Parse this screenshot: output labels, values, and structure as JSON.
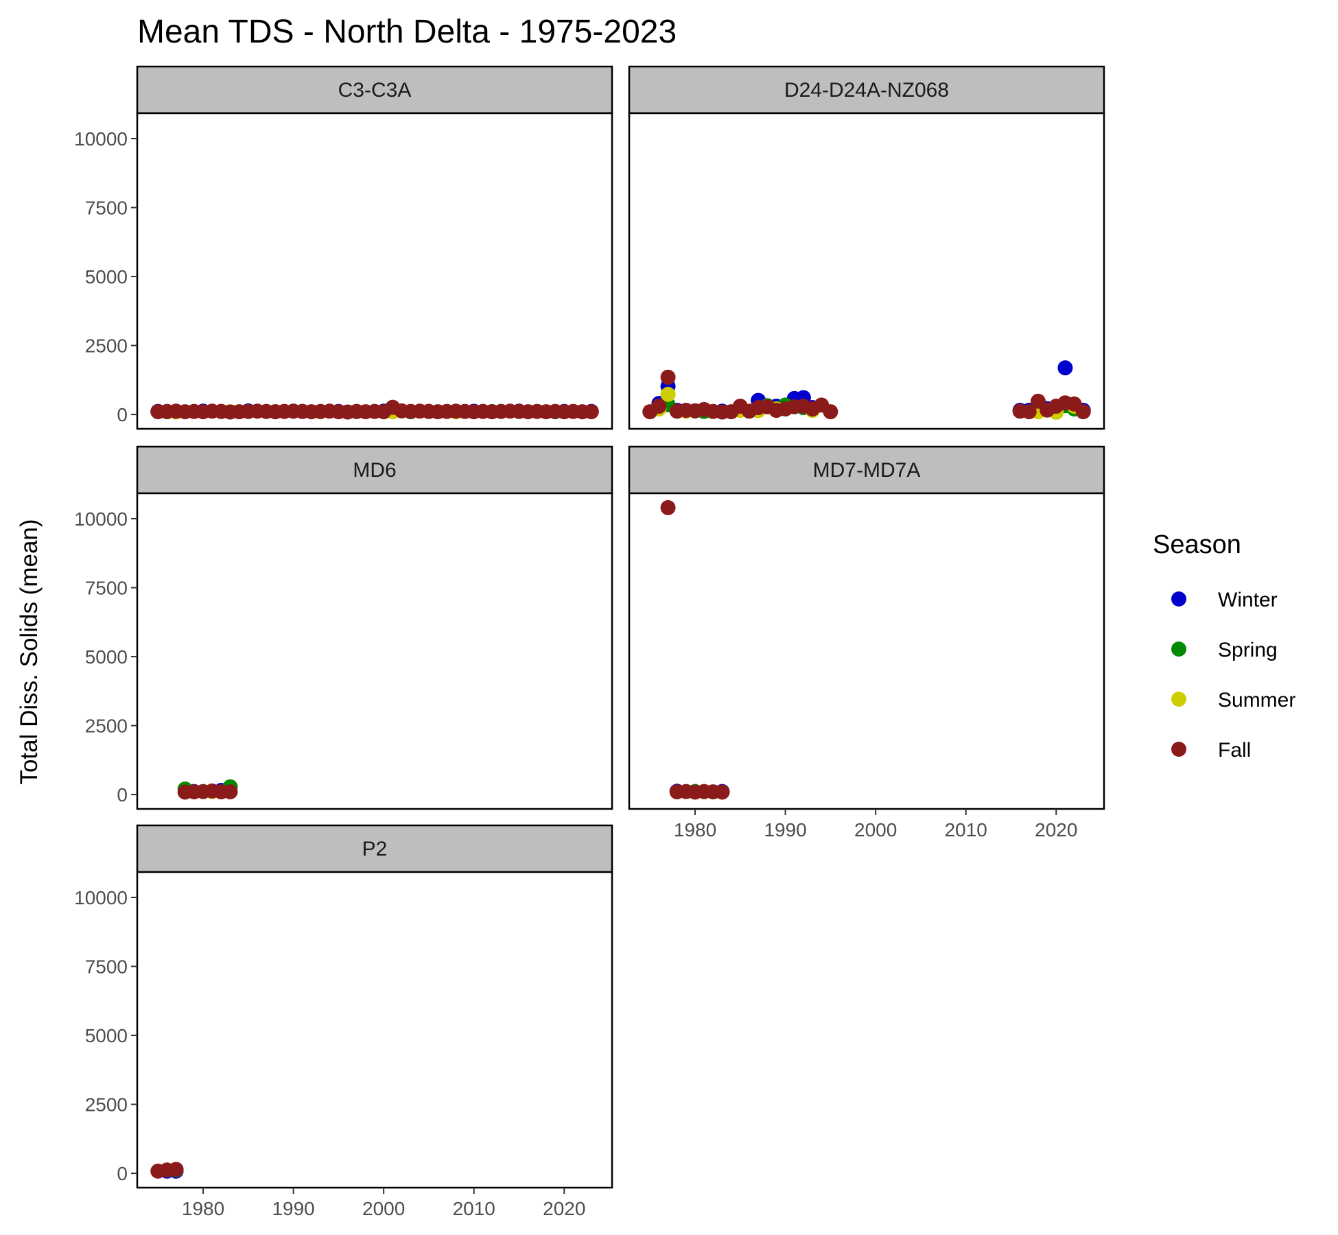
{
  "chart_data": {
    "type": "scatter",
    "title": "Mean TDS - North Delta - 1975-2023",
    "xlabel": "",
    "ylabel": "Total Diss. Solids (mean)",
    "xlim": [
      1972.7,
      2025.3
    ],
    "ylim": [
      -520,
      10920
    ],
    "x_ticks": [
      1980,
      1990,
      2000,
      2010,
      2020
    ],
    "y_ticks": [
      0,
      2500,
      5000,
      7500,
      10000
    ],
    "grid": false,
    "legend": {
      "title": "Season",
      "position": "right",
      "entries": [
        {
          "name": "Winter",
          "color": "#0000cd"
        },
        {
          "name": "Spring",
          "color": "#008b00"
        },
        {
          "name": "Summer",
          "color": "#cdcd00"
        },
        {
          "name": "Fall",
          "color": "#8b1a1a"
        }
      ]
    },
    "facets": [
      {
        "name": "C3-C3A",
        "series": [
          {
            "name": "Winter",
            "points": [
              [
                1975,
                110
              ],
              [
                1980,
                120
              ],
              [
                1985,
                130
              ],
              [
                1990,
                120
              ],
              [
                1995,
                110
              ],
              [
                2000,
                120
              ],
              [
                2005,
                110
              ],
              [
                2010,
                115
              ],
              [
                2015,
                120
              ],
              [
                2020,
                110
              ],
              [
                2023,
                110
              ]
            ]
          },
          {
            "name": "Spring",
            "points": [
              [
                1976,
                100
              ],
              [
                1982,
                110
              ],
              [
                1988,
                100
              ],
              [
                1991,
                110
              ],
              [
                1997,
                105
              ],
              [
                2003,
                100
              ],
              [
                2012,
                105
              ],
              [
                2019,
                100
              ]
            ]
          },
          {
            "name": "Summer",
            "points": [
              [
                1977,
                90
              ],
              [
                1983,
                100
              ],
              [
                1993,
                95
              ],
              [
                2001,
                100
              ],
              [
                2008,
                95
              ],
              [
                2016,
                100
              ],
              [
                2022,
                95
              ]
            ]
          },
          {
            "name": "Fall",
            "points": [
              [
                1975,
                100
              ],
              [
                1976,
                110
              ],
              [
                1977,
                120
              ],
              [
                1978,
                100
              ],
              [
                1979,
                110
              ],
              [
                1980,
                100
              ],
              [
                1981,
                120
              ],
              [
                1982,
                110
              ],
              [
                1983,
                90
              ],
              [
                1984,
                100
              ],
              [
                1985,
                110
              ],
              [
                1986,
                120
              ],
              [
                1987,
                110
              ],
              [
                1988,
                100
              ],
              [
                1989,
                110
              ],
              [
                1990,
                120
              ],
              [
                1991,
                110
              ],
              [
                1992,
                100
              ],
              [
                1993,
                110
              ],
              [
                1994,
                120
              ],
              [
                1995,
                100
              ],
              [
                1996,
                90
              ],
              [
                1997,
                110
              ],
              [
                1998,
                100
              ],
              [
                1999,
                110
              ],
              [
                2000,
                100
              ],
              [
                2001,
                260
              ],
              [
                2002,
                130
              ],
              [
                2003,
                110
              ],
              [
                2004,
                120
              ],
              [
                2005,
                110
              ],
              [
                2006,
                100
              ],
              [
                2007,
                110
              ],
              [
                2008,
                120
              ],
              [
                2009,
                110
              ],
              [
                2010,
                100
              ],
              [
                2011,
                110
              ],
              [
                2012,
                100
              ],
              [
                2013,
                110
              ],
              [
                2014,
                120
              ],
              [
                2015,
                110
              ],
              [
                2016,
                100
              ],
              [
                2017,
                110
              ],
              [
                2018,
                100
              ],
              [
                2019,
                110
              ],
              [
                2020,
                100
              ],
              [
                2021,
                110
              ],
              [
                2022,
                100
              ],
              [
                2023,
                100
              ]
            ]
          }
        ]
      },
      {
        "name": "D24-D24A-NZ068",
        "series": [
          {
            "name": "Winter",
            "points": [
              [
                1976,
                400
              ],
              [
                1977,
                1020
              ],
              [
                1978,
                150
              ],
              [
                1980,
                130
              ],
              [
                1983,
                120
              ],
              [
                1987,
                510
              ],
              [
                1989,
                300
              ],
              [
                1991,
                580
              ],
              [
                1992,
                610
              ],
              [
                1993,
                250
              ],
              [
                2016,
                150
              ],
              [
                2017,
                150
              ],
              [
                2019,
                210
              ],
              [
                2021,
                1690
              ],
              [
                2022,
                350
              ],
              [
                2023,
                150
              ]
            ]
          },
          {
            "name": "Spring",
            "points": [
              [
                1977,
                350
              ],
              [
                1981,
                110
              ],
              [
                1988,
                320
              ],
              [
                1990,
                340
              ],
              [
                1992,
                250
              ],
              [
                2020,
                200
              ],
              [
                2021,
                320
              ],
              [
                2022,
                200
              ]
            ]
          },
          {
            "name": "Summer",
            "points": [
              [
                1976,
                200
              ],
              [
                1977,
                730
              ],
              [
                1979,
                120
              ],
              [
                1985,
                150
              ],
              [
                1987,
                140
              ],
              [
                1989,
                200
              ],
              [
                1993,
                150
              ],
              [
                2018,
                100
              ],
              [
                2020,
                80
              ],
              [
                2022,
                300
              ]
            ]
          },
          {
            "name": "Fall",
            "points": [
              [
                1975,
                100
              ],
              [
                1976,
                300
              ],
              [
                1977,
                1350
              ],
              [
                1978,
                120
              ],
              [
                1979,
                150
              ],
              [
                1980,
                130
              ],
              [
                1981,
                180
              ],
              [
                1982,
                110
              ],
              [
                1983,
                90
              ],
              [
                1984,
                100
              ],
              [
                1985,
                300
              ],
              [
                1986,
                120
              ],
              [
                1987,
                250
              ],
              [
                1988,
                280
              ],
              [
                1989,
                150
              ],
              [
                1990,
                200
              ],
              [
                1991,
                280
              ],
              [
                1992,
                300
              ],
              [
                1993,
                200
              ],
              [
                1994,
                340
              ],
              [
                1995,
                100
              ],
              [
                2016,
                120
              ],
              [
                2017,
                100
              ],
              [
                2018,
                480
              ],
              [
                2019,
                160
              ],
              [
                2020,
                300
              ],
              [
                2021,
                420
              ],
              [
                2022,
                380
              ],
              [
                2023,
                100
              ]
            ]
          }
        ]
      },
      {
        "name": "MD6",
        "series": [
          {
            "name": "Winter",
            "points": [
              [
                1979,
                110
              ],
              [
                1982,
                150
              ]
            ]
          },
          {
            "name": "Spring",
            "points": [
              [
                1978,
                200
              ],
              [
                1983,
                280
              ]
            ]
          },
          {
            "name": "Summer",
            "points": [
              [
                1981,
                110
              ]
            ]
          },
          {
            "name": "Fall",
            "points": [
              [
                1978,
                90
              ],
              [
                1979,
                100
              ],
              [
                1980,
                110
              ],
              [
                1981,
                130
              ],
              [
                1982,
                100
              ],
              [
                1983,
                100
              ]
            ]
          }
        ]
      },
      {
        "name": "MD7-MD7A",
        "series": [
          {
            "name": "Winter",
            "points": [
              [
                1978,
                120
              ],
              [
                1983,
                110
              ]
            ]
          },
          {
            "name": "Spring",
            "points": [
              [
                1980,
                110
              ]
            ]
          },
          {
            "name": "Summer",
            "points": [
              [
                1981,
                100
              ]
            ]
          },
          {
            "name": "Fall",
            "points": [
              [
                1977,
                10400
              ],
              [
                1978,
                100
              ],
              [
                1979,
                110
              ],
              [
                1980,
                90
              ],
              [
                1981,
                110
              ],
              [
                1982,
                100
              ],
              [
                1983,
                90
              ]
            ]
          }
        ]
      },
      {
        "name": "P2",
        "series": [
          {
            "name": "Winter",
            "points": [
              [
                1976,
                80
              ],
              [
                1977,
                80
              ]
            ]
          },
          {
            "name": "Spring",
            "points": [
              [
                1977,
                120
              ]
            ]
          },
          {
            "name": "Summer",
            "points": []
          },
          {
            "name": "Fall",
            "points": [
              [
                1975,
                80
              ],
              [
                1976,
                120
              ],
              [
                1977,
                140
              ]
            ]
          }
        ]
      }
    ]
  }
}
